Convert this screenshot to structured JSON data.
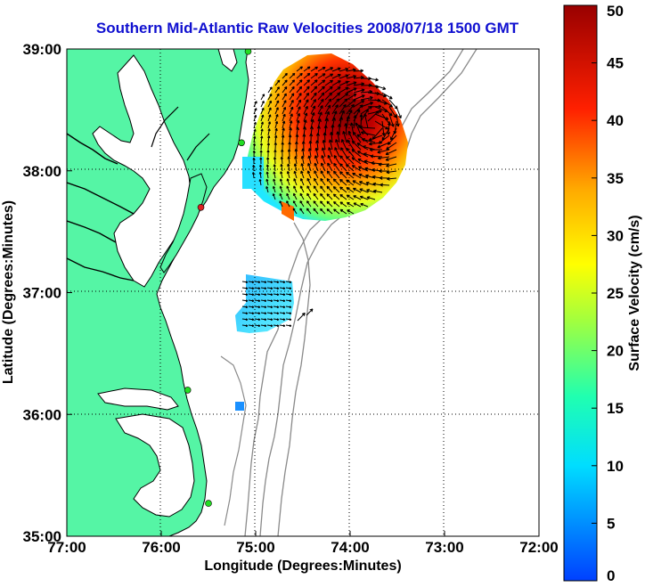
{
  "title": "Southern Mid-Atlantic Raw Velocities 2008/07/18 1500 GMT",
  "x_axis": {
    "label": "Longitude (Degrees:Minutes)",
    "ticks": [
      {
        "value": -77,
        "label": "77:00"
      },
      {
        "value": -76,
        "label": "76:00"
      },
      {
        "value": -75,
        "label": "75:00"
      },
      {
        "value": -74,
        "label": "74:00"
      },
      {
        "value": -73,
        "label": "73:00"
      },
      {
        "value": -72,
        "label": "72:00"
      }
    ],
    "range": [
      -77,
      -72
    ]
  },
  "y_axis": {
    "label": "Latitude (Degrees:Minutes)",
    "ticks": [
      {
        "value": 39,
        "label": "39:00"
      },
      {
        "value": 38,
        "label": "38:00"
      },
      {
        "value": 37,
        "label": "37:00"
      },
      {
        "value": 36,
        "label": "36:00"
      },
      {
        "value": 35,
        "label": "35:00"
      }
    ],
    "range": [
      35,
      39
    ]
  },
  "colorbar": {
    "label": "Surface Velocity (cm/s)",
    "min": 0,
    "max": 50,
    "ticks": [
      "0",
      "5",
      "10",
      "15",
      "20",
      "25",
      "30",
      "35",
      "40",
      "45",
      "50"
    ]
  },
  "colors": {
    "land": "#55f5a5",
    "ocean": "#ffffff",
    "title": "#1010d0",
    "bathymetry": "#8a8a8a"
  },
  "stations": [
    {
      "lon": -75.08,
      "lat": 38.98,
      "color": "#22dd22"
    },
    {
      "lon": -75.15,
      "lat": 38.23,
      "color": "#22dd22"
    },
    {
      "lon": -75.58,
      "lat": 37.7,
      "color": "#dd2222"
    },
    {
      "lon": -75.72,
      "lat": 36.2,
      "color": "#22dd22"
    },
    {
      "lon": -75.5,
      "lat": 35.27,
      "color": "#22dd22"
    }
  ],
  "velocity_regions": [
    {
      "name": "northern",
      "center_lon": -74.1,
      "center_lat": 38.45,
      "speed_range": [
        5,
        50
      ]
    },
    {
      "name": "southern",
      "center_lon": -74.95,
      "center_lat": 36.88,
      "speed_range": [
        5,
        12
      ]
    },
    {
      "name": "small-patch",
      "center_lon": -75.15,
      "center_lat": 36.08,
      "speed_range": [
        7,
        7
      ]
    }
  ]
}
